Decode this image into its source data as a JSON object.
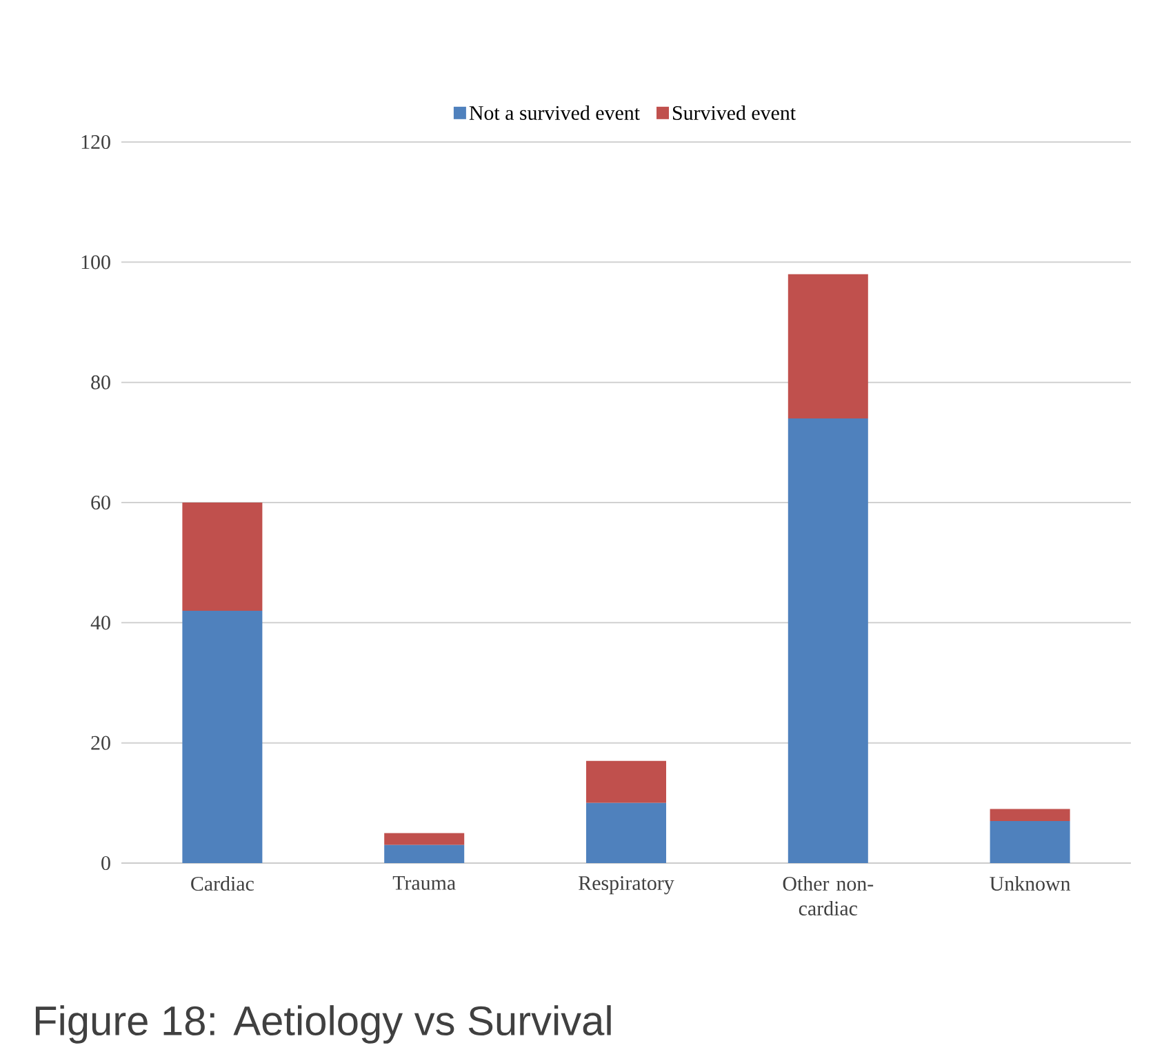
{
  "chart_data": {
    "type": "bar",
    "stacked": true,
    "title": "Figure 18: Aetiology vs Survival",
    "categories": [
      "Cardiac",
      "Trauma",
      "Respiratory",
      "Other non-cardiac",
      "Unknown"
    ],
    "series": [
      {
        "name": "Not a survived event",
        "color": "#4f81bd",
        "values": [
          42,
          3,
          10,
          74,
          7
        ]
      },
      {
        "name": "Survived event",
        "color": "#c0504d",
        "values": [
          18,
          2,
          7,
          24,
          2
        ]
      }
    ],
    "ylim": [
      0,
      120
    ],
    "yticks": [
      0,
      20,
      40,
      60,
      80,
      100,
      120
    ],
    "grid": "y",
    "legend": "top"
  }
}
